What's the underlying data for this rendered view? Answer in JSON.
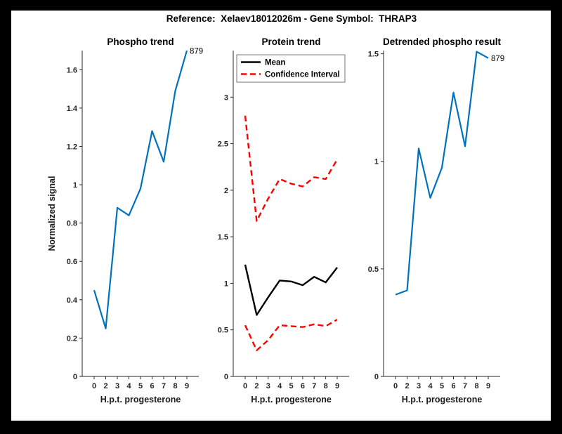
{
  "figure": {
    "title": "Reference:  Xelaev18012026m - Gene Symbol:  THRAP3"
  },
  "colors": {
    "accent_blue": "#0072BD",
    "ci_red": "#FF0000",
    "mean_black": "#000000",
    "axis_gray": "#262626",
    "figure_border": "#000000",
    "figure_background": "#ffffff"
  },
  "chart_data": [
    {
      "type": "line",
      "title": "Phospho trend",
      "xlabel": "H.p.t. progesterone",
      "ylabel": "Normalized signal",
      "x_tick_labels": [
        "0",
        "2",
        "3",
        "4",
        "5",
        "6",
        "7",
        "8",
        "9"
      ],
      "x_values": [
        0,
        2,
        3,
        4,
        5,
        6,
        7,
        8,
        9
      ],
      "ylim": [
        0,
        1.7
      ],
      "ytick_values": [
        0,
        0.2,
        0.4,
        0.6,
        0.8,
        1,
        1.2,
        1.4,
        1.6
      ],
      "ytick_labels": [
        "0",
        "0.2",
        "0.4",
        "0.6",
        "0.8",
        "1",
        "1.2",
        "1.4",
        "1.6"
      ],
      "grid": false,
      "legend": null,
      "end_label": "879",
      "series": [
        {
          "name": "phospho-signal",
          "color": "#0072BD",
          "dashed": false,
          "width": 2.2,
          "values": [
            0.45,
            0.25,
            0.88,
            0.84,
            0.98,
            1.28,
            1.12,
            1.49,
            1.7
          ]
        }
      ]
    },
    {
      "type": "line",
      "title": "Protein trend",
      "xlabel": "H.p.t. progesterone",
      "ylabel": "",
      "x_tick_labels": [
        "0",
        "2",
        "3",
        "4",
        "5",
        "6",
        "7",
        "8",
        "9"
      ],
      "x_values": [
        0,
        2,
        3,
        4,
        5,
        6,
        7,
        8,
        9
      ],
      "ylim": [
        0,
        3.5
      ],
      "ytick_values": [
        0,
        0.5,
        1,
        1.5,
        2,
        2.5,
        3
      ],
      "ytick_labels": [
        "0",
        "0.5",
        "1",
        "1.5",
        "2",
        "2.5",
        "3"
      ],
      "grid": false,
      "legend": {
        "position": "top-left",
        "entries": [
          {
            "label": "Mean",
            "color": "#000000",
            "dashed": false
          },
          {
            "label": "Confidence Interval",
            "color": "#FF0000",
            "dashed": true
          }
        ]
      },
      "end_label": null,
      "series": [
        {
          "name": "mean",
          "color": "#000000",
          "dashed": false,
          "width": 2.4,
          "values": [
            1.2,
            0.66,
            0.85,
            1.03,
            1.02,
            0.98,
            1.07,
            1.01,
            1.17
          ]
        },
        {
          "name": "confidence-interval-upper",
          "color": "#FF0000",
          "dashed": true,
          "width": 2.4,
          "values": [
            2.8,
            1.67,
            1.91,
            2.12,
            2.07,
            2.04,
            2.14,
            2.12,
            2.33
          ]
        },
        {
          "name": "confidence-interval-lower",
          "color": "#FF0000",
          "dashed": true,
          "width": 2.4,
          "values": [
            0.55,
            0.28,
            0.39,
            0.55,
            0.54,
            0.53,
            0.56,
            0.54,
            0.61
          ]
        }
      ]
    },
    {
      "type": "line",
      "title": "Detrended phospho result",
      "xlabel": "H.p.t. progesterone",
      "ylabel": "",
      "x_tick_labels": [
        "0",
        "2",
        "3",
        "4",
        "5",
        "6",
        "7",
        "8",
        "9"
      ],
      "x_values": [
        0,
        2,
        3,
        4,
        5,
        6,
        7,
        8,
        9
      ],
      "ylim": [
        0,
        1.515
      ],
      "ytick_values": [
        0,
        0.5,
        1,
        1.5
      ],
      "ytick_labels": [
        "0",
        "0.5",
        "1",
        "1.5"
      ],
      "grid": false,
      "legend": null,
      "end_label": "879",
      "series": [
        {
          "name": "detrended-phospho-signal",
          "color": "#0072BD",
          "dashed": false,
          "width": 2.2,
          "values": [
            0.38,
            0.4,
            1.06,
            0.83,
            0.97,
            1.32,
            1.07,
            1.51,
            1.48
          ]
        }
      ]
    }
  ]
}
